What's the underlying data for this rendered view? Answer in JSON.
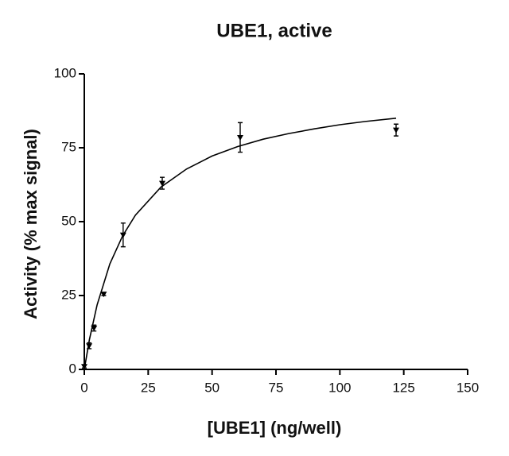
{
  "chart_data": {
    "type": "scatter",
    "title": "UBE1, active",
    "x_label": "[UBE1] (ng/well)",
    "y_label": "Activity (% max signal)",
    "xlim": [
      0,
      150
    ],
    "xticks": [
      0,
      25,
      50,
      75,
      100,
      125,
      150
    ],
    "ylim": [
      0,
      100
    ],
    "yticks": [
      0,
      25,
      50,
      75,
      100
    ],
    "color": "#000000",
    "x": [
      0,
      1.9,
      3.8,
      7.6,
      15.2,
      30.5,
      61,
      122
    ],
    "values": [
      1,
      8,
      14,
      25.5,
      45.5,
      63,
      78.5,
      81
    ],
    "errors": [
      0.5,
      1,
      1,
      0.5,
      4,
      2,
      5,
      2
    ],
    "fit": {
      "x": [
        0,
        2,
        5,
        10,
        15,
        20,
        30,
        40,
        50,
        60,
        70,
        80,
        90,
        100,
        110,
        122
      ],
      "values": [
        0,
        10.1,
        21.8,
        35.7,
        45.2,
        52.2,
        61.7,
        67.8,
        72.2,
        75.4,
        77.9,
        79.8,
        81.4,
        82.8,
        83.9,
        85.0
      ]
    }
  }
}
